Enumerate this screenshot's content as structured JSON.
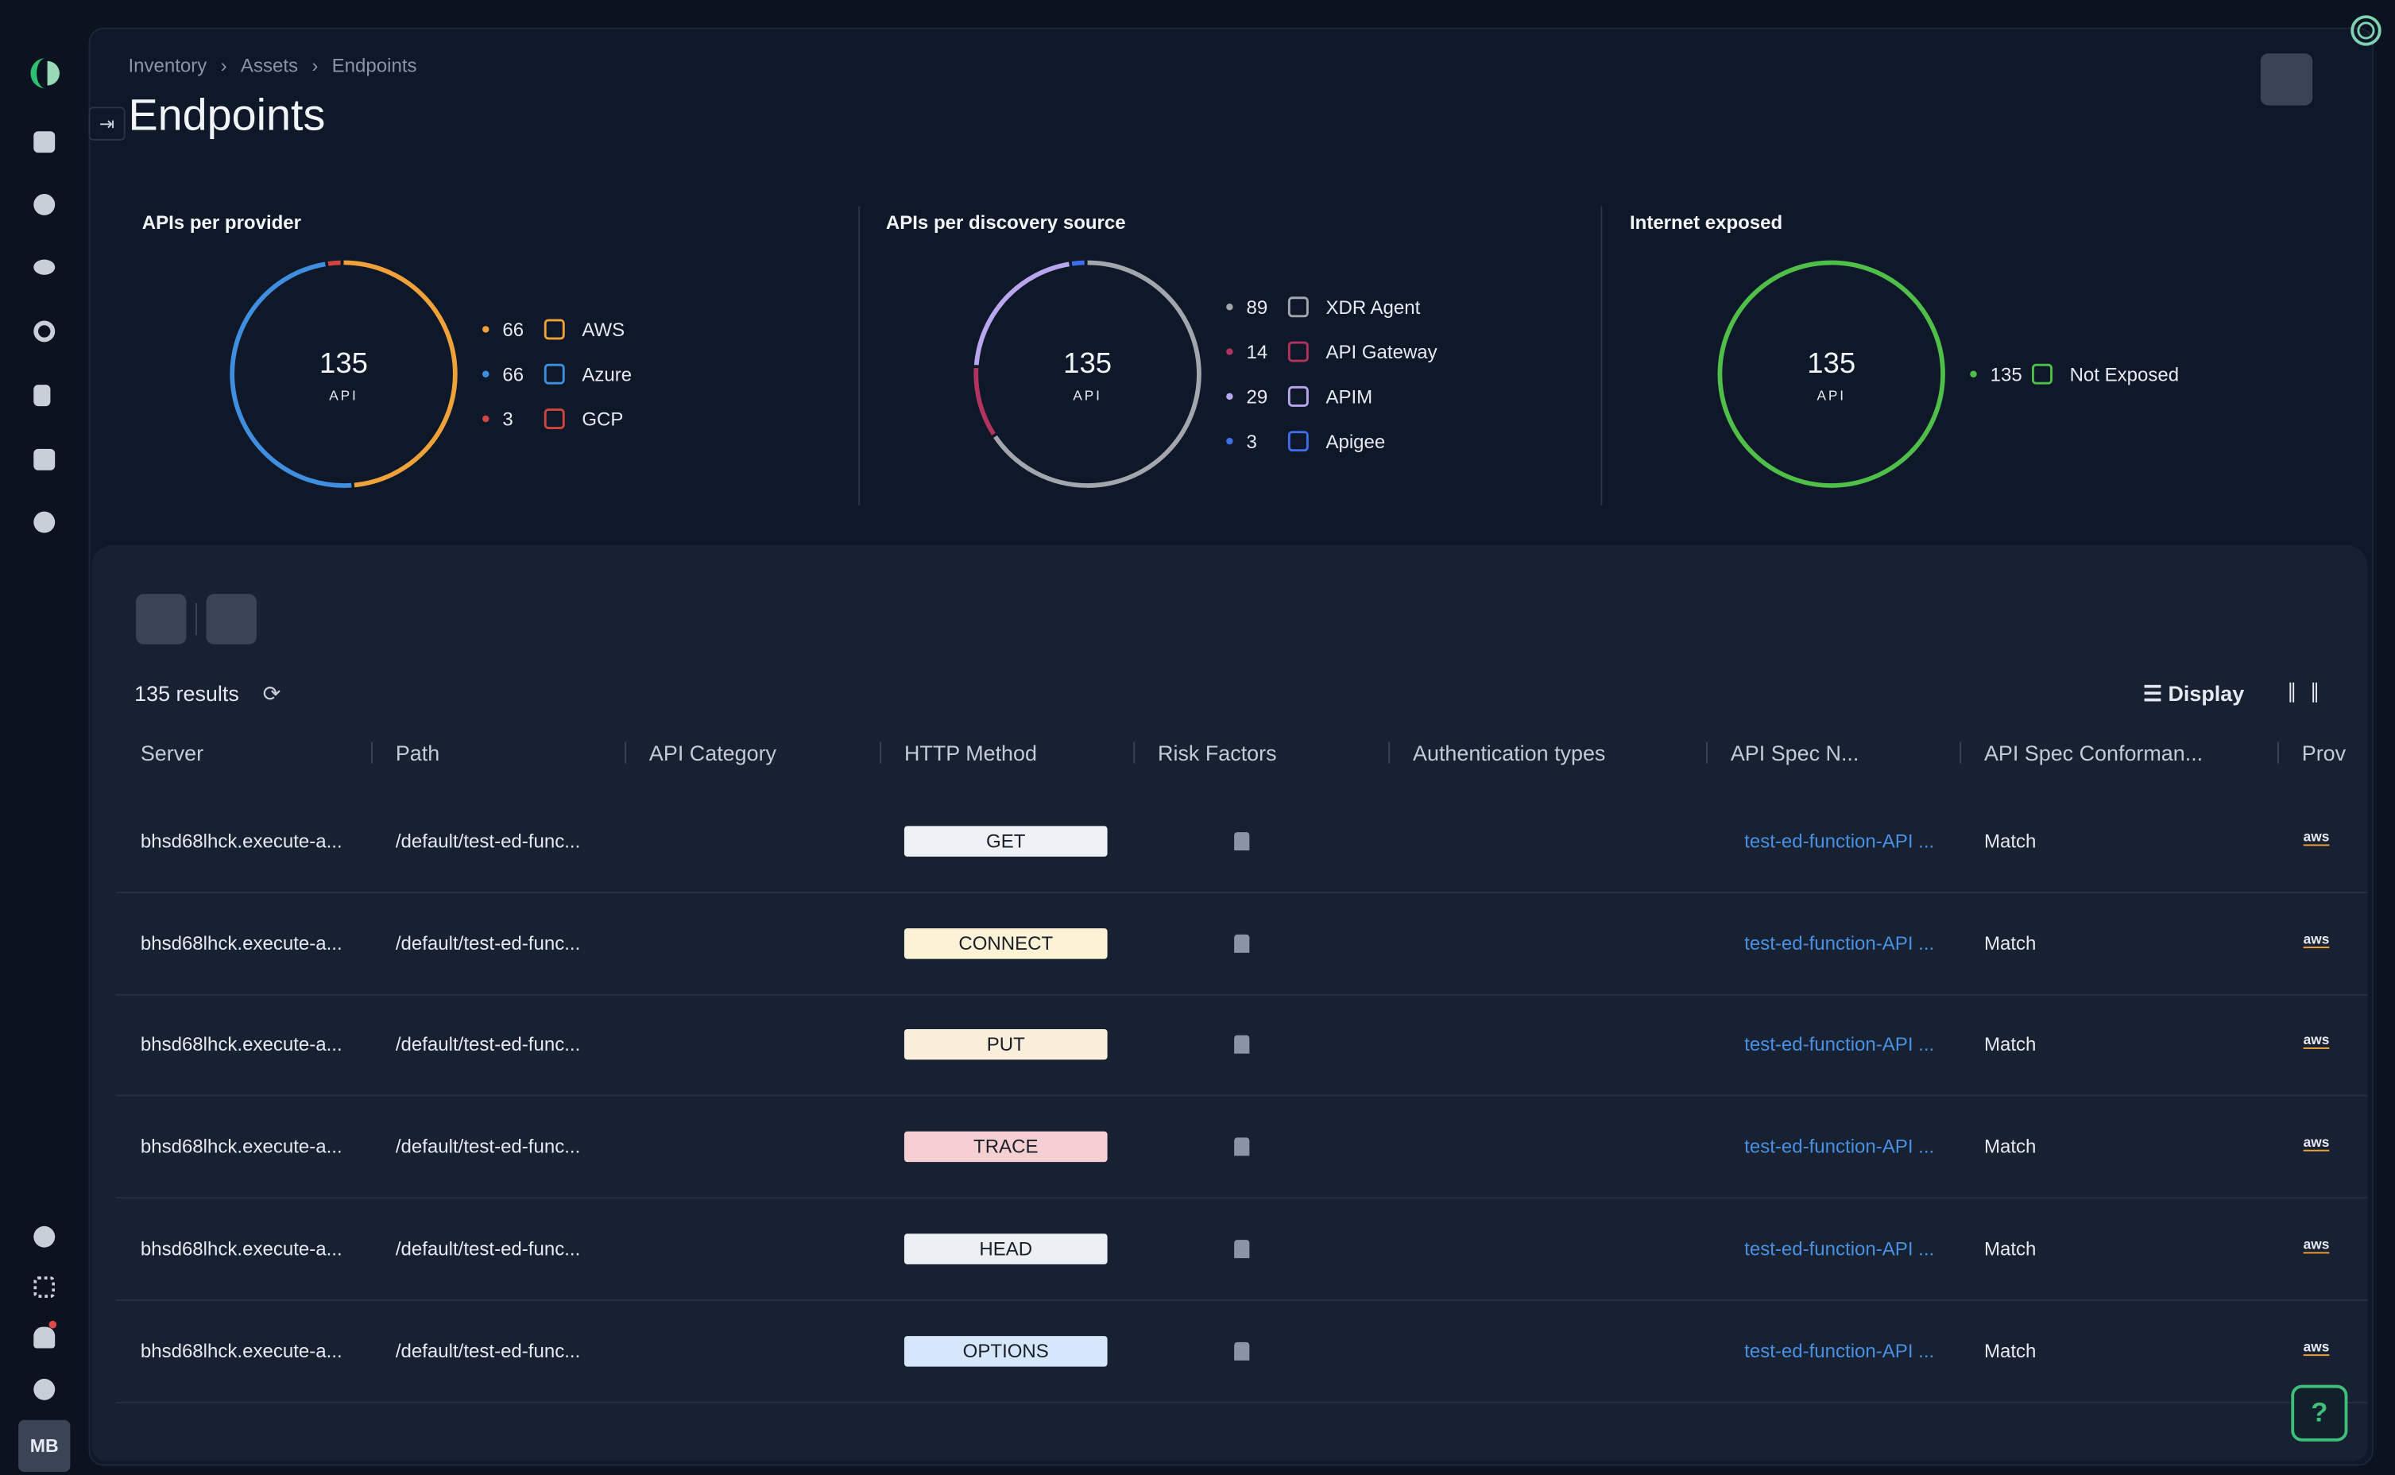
{
  "breadcrumb": [
    "Inventory",
    "Assets",
    "Endpoints"
  ],
  "title": "Endpoints",
  "widgets": [
    {
      "title": "APIs per provider",
      "total": 135,
      "unit": "API",
      "items": [
        {
          "value": 66,
          "name": "AWS",
          "color": "#f0a23a"
        },
        {
          "value": 66,
          "name": "Azure",
          "color": "#3f8ee0"
        },
        {
          "value": 3,
          "name": "GCP",
          "color": "#d0453f"
        }
      ]
    },
    {
      "title": "APIs per discovery source",
      "total": 135,
      "unit": "API",
      "items": [
        {
          "value": 89,
          "name": "XDR Agent",
          "color": "#a3a6ad"
        },
        {
          "value": 14,
          "name": "API Gateway",
          "color": "#b2335e"
        },
        {
          "value": 29,
          "name": "APIM",
          "color": "#b9a6ee"
        },
        {
          "value": 3,
          "name": "Apigee",
          "color": "#3f6ee8"
        }
      ]
    },
    {
      "title": "Internet exposed",
      "total": 135,
      "unit": "API",
      "items": [
        {
          "value": 135,
          "name": "Not Exposed",
          "color": "#4fbf4a"
        }
      ]
    }
  ],
  "results_count": "135 results",
  "display": "Display",
  "columns": [
    "Server",
    "Path",
    "API Category",
    "HTTP Method",
    "Risk Factors",
    "Authentication types",
    "API Spec N...",
    "API Spec Conforman...",
    "Prov"
  ],
  "rows": [
    {
      "server": "bhsd68lhck.execute-a...",
      "path": "/default/test-ed-func...",
      "method": "GET",
      "method_color": "#eef1f5",
      "spec": "test-ed-function-API ...",
      "conformance": "Match",
      "provider": "aws"
    },
    {
      "server": "bhsd68lhck.execute-a...",
      "path": "/default/test-ed-func...",
      "method": "CONNECT",
      "method_color": "#fcf3d6",
      "spec": "test-ed-function-API ...",
      "conformance": "Match",
      "provider": "aws"
    },
    {
      "server": "bhsd68lhck.execute-a...",
      "path": "/default/test-ed-func...",
      "method": "PUT",
      "method_color": "#fbefdc",
      "spec": "test-ed-function-API ...",
      "conformance": "Match",
      "provider": "aws"
    },
    {
      "server": "bhsd68lhck.execute-a...",
      "path": "/default/test-ed-func...",
      "method": "TRACE",
      "method_color": "#f6cfd2",
      "spec": "test-ed-function-API ...",
      "conformance": "Match",
      "provider": "aws"
    },
    {
      "server": "bhsd68lhck.execute-a...",
      "path": "/default/test-ed-func...",
      "method": "HEAD",
      "method_color": "#eceff3",
      "spec": "test-ed-function-API ...",
      "conformance": "Match",
      "provider": "aws"
    },
    {
      "server": "bhsd68lhck.execute-a...",
      "path": "/default/test-ed-func...",
      "method": "OPTIONS",
      "method_color": "#d6e6fb",
      "spec": "test-ed-function-API ...",
      "conformance": "Match",
      "provider": "aws"
    }
  ],
  "user_initials": "MB"
}
